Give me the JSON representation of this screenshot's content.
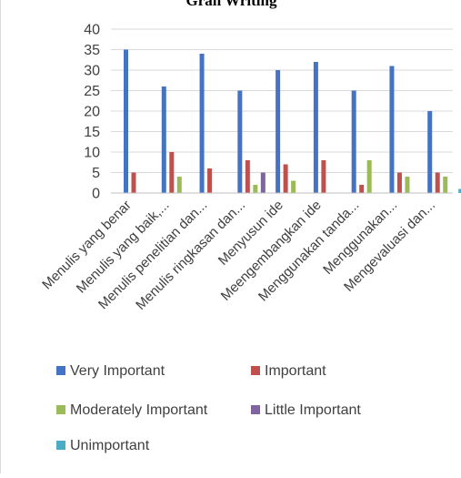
{
  "chart_data": {
    "type": "bar",
    "title": "Gran Writing",
    "xlabel": "",
    "ylabel": "",
    "ylim": [
      0,
      40
    ],
    "yticks": [
      0,
      5,
      10,
      15,
      20,
      25,
      30,
      35,
      40
    ],
    "grid": true,
    "legend_position": "bottom",
    "categories": [
      "Menulis yang benar",
      "Menulis yang baik,...",
      "Menulis penelitian dan...",
      "Menulis ringkasan dan...",
      "Menyusun ide",
      "Meengembangkan ide",
      "Menggunakan tanda...",
      "Menggunakan...",
      "Mengevaluasi dan..."
    ],
    "series": [
      {
        "name": "Very Important",
        "color": "#4472c4",
        "values": [
          35,
          26,
          34,
          25,
          30,
          32,
          25,
          31,
          20
        ]
      },
      {
        "name": "Important",
        "color": "#c0504d",
        "values": [
          5,
          10,
          6,
          8,
          7,
          8,
          2,
          5,
          5
        ]
      },
      {
        "name": "Moderately Important",
        "color": "#9bbb59",
        "values": [
          0,
          4,
          0,
          2,
          3,
          0,
          8,
          4,
          4
        ]
      },
      {
        "name": "Little Important",
        "color": "#8064a2",
        "values": [
          0,
          0,
          0,
          5,
          0,
          0,
          0,
          0,
          0
        ]
      },
      {
        "name": "Unimportant",
        "color": "#4bacc6",
        "values": [
          0,
          0,
          0,
          0,
          0,
          0,
          0,
          0,
          1
        ]
      }
    ]
  }
}
